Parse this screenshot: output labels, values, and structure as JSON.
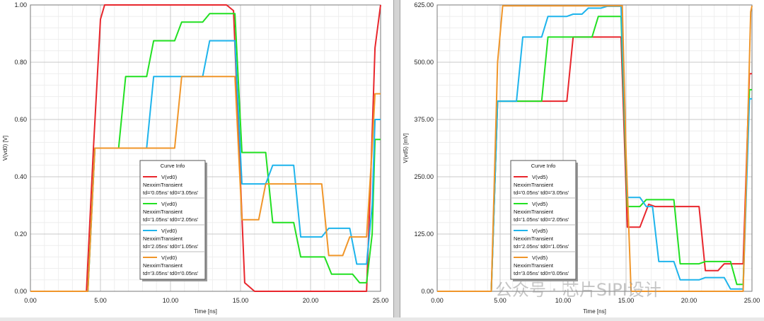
{
  "chart_data": [
    {
      "type": "line",
      "title": "",
      "xlabel": "Time [ns]",
      "ylabel": "V(vd0) [V]",
      "xlim": [
        0,
        25
      ],
      "ylim": [
        0,
        1
      ],
      "xticks": [
        "0.00",
        "5.00",
        "10.00",
        "15.00",
        "20.00",
        "25.00"
      ],
      "yticks": [
        "0.00",
        "0.20",
        "0.40",
        "0.60",
        "0.80",
        "1.00"
      ],
      "grid": true,
      "legend_title": "Curve Info",
      "legend_position": "lower-center",
      "series": [
        {
          "name": "V(vd0)",
          "sub": "NexximTransient",
          "params": "td='0.05ns' td0='3.05ns'",
          "color": "#e8262c",
          "x": [
            0,
            4.0,
            4.5,
            5.0,
            5.3,
            14.0,
            14.5,
            14.9,
            15.3,
            16.0,
            24.0,
            24.3,
            24.6,
            25.0
          ],
          "y": [
            0,
            0.0,
            0.5,
            0.95,
            1.0,
            1.0,
            0.98,
            0.5,
            0.03,
            0.0,
            0.0,
            0.4,
            0.85,
            1.0
          ]
        },
        {
          "name": "V(vd0)",
          "sub": "NexximTransient",
          "params": "td='1.05ns' td0='2.05ns'",
          "color": "#22e022",
          "x": [
            0,
            4.1,
            4.6,
            6.3,
            6.8,
            8.3,
            8.8,
            10.3,
            10.8,
            12.3,
            12.8,
            14.6,
            15.1,
            16.8,
            17.3,
            18.8,
            19.3,
            21.0,
            21.5,
            23.0,
            23.5,
            24.0,
            24.4,
            24.6,
            24.9,
            25.0
          ],
          "y": [
            0,
            0.0,
            0.5,
            0.5,
            0.75,
            0.75,
            0.875,
            0.875,
            0.94,
            0.94,
            0.97,
            0.97,
            0.485,
            0.485,
            0.24,
            0.24,
            0.12,
            0.12,
            0.06,
            0.06,
            0.03,
            0.03,
            0.2,
            0.53,
            0.53,
            0.53
          ]
        },
        {
          "name": "V(vd0)",
          "sub": "NexximTransient",
          "params": "td='2.05ns' td0='1.05ns'",
          "color": "#1eb4ec",
          "x": [
            0,
            4.1,
            4.6,
            8.3,
            8.8,
            12.3,
            12.8,
            14.6,
            15.1,
            16.8,
            17.3,
            18.8,
            19.3,
            20.8,
            21.3,
            22.8,
            23.3,
            24.0,
            24.4,
            24.6,
            24.9,
            25.0
          ],
          "y": [
            0,
            0.0,
            0.5,
            0.5,
            0.75,
            0.75,
            0.875,
            0.875,
            0.375,
            0.375,
            0.44,
            0.44,
            0.19,
            0.19,
            0.22,
            0.22,
            0.095,
            0.095,
            0.3,
            0.6,
            0.6,
            0.6
          ]
        },
        {
          "name": "V(vd0)",
          "sub": "NexximTransient",
          "params": "td='3.05ns' td0='0.05ns'",
          "color": "#f0962a",
          "x": [
            0,
            4.1,
            4.6,
            10.3,
            10.8,
            14.6,
            15.1,
            16.3,
            16.8,
            20.8,
            21.3,
            22.3,
            22.8,
            24.0,
            24.4,
            24.6,
            24.9,
            25.0
          ],
          "y": [
            0,
            0.0,
            0.5,
            0.5,
            0.75,
            0.75,
            0.25,
            0.25,
            0.375,
            0.375,
            0.125,
            0.125,
            0.19,
            0.19,
            0.5,
            0.69,
            0.69,
            0.69
          ]
        }
      ]
    },
    {
      "type": "line",
      "title": "",
      "xlabel": "Time [ns]",
      "ylabel": "V(vd5) [mV]",
      "xlim": [
        0,
        25
      ],
      "ylim": [
        0,
        625
      ],
      "xticks": [
        "0.00",
        "5.00",
        "10.00",
        "15.00",
        "20.00",
        "25.00"
      ],
      "yticks": [
        "0.00",
        "125.00",
        "250.00",
        "375.00",
        "500.00",
        "625.00"
      ],
      "grid": true,
      "legend_title": "Curve Info",
      "legend_position": "lower-center",
      "series": [
        {
          "name": "V(vd5)",
          "sub": "NexximTransient",
          "params": "td='0.05ns' td0='3.05ns'",
          "color": "#e8262c",
          "x": [
            0,
            4.3,
            4.8,
            10.3,
            10.8,
            14.6,
            15.1,
            15.6,
            16.1,
            16.8,
            17.3,
            20.8,
            21.3,
            22.3,
            22.8,
            24.3,
            24.8,
            25.0
          ],
          "y": [
            0,
            0,
            415,
            415,
            555,
            555,
            140,
            140,
            140,
            190,
            185,
            185,
            45,
            45,
            60,
            60,
            475,
            475
          ]
        },
        {
          "name": "V(vd5)",
          "sub": "NexximTransient",
          "params": "td='1.05ns' td0='2.05ns'",
          "color": "#22e022",
          "x": [
            0,
            4.3,
            4.8,
            8.3,
            8.8,
            12.3,
            12.8,
            14.6,
            15.1,
            16.1,
            16.6,
            18.8,
            19.3,
            20.8,
            21.3,
            23.3,
            23.8,
            24.3,
            24.8,
            25.0
          ],
          "y": [
            0,
            0,
            415,
            415,
            555,
            555,
            600,
            600,
            185,
            185,
            200,
            200,
            60,
            60,
            65,
            65,
            15,
            15,
            440,
            440
          ]
        },
        {
          "name": "V(vd5)",
          "sub": "NexximTransient",
          "params": "td='2.05ns' td0='1.05ns'",
          "color": "#1eb4ec",
          "x": [
            0,
            4.3,
            4.8,
            6.3,
            6.8,
            8.3,
            8.8,
            10.3,
            10.8,
            11.5,
            12.0,
            13.0,
            13.5,
            14.6,
            15.1,
            16.1,
            16.6,
            17.1,
            17.6,
            18.8,
            19.3,
            20.8,
            21.3,
            22.8,
            23.3,
            24.3,
            24.8,
            25.0
          ],
          "y": [
            0,
            0,
            415,
            415,
            555,
            555,
            600,
            600,
            605,
            605,
            618,
            618,
            622,
            622,
            205,
            205,
            185,
            185,
            65,
            65,
            25,
            25,
            30,
            30,
            5,
            5,
            420,
            420
          ]
        },
        {
          "name": "V(vd5)",
          "sub": "NexximTransient",
          "params": "td='3.05ns' td0='0.05ns'",
          "color": "#f0962a",
          "x": [
            0,
            4.3,
            4.8,
            5.2,
            14.7,
            15.0,
            15.4,
            24.3,
            24.6,
            24.9,
            25.0
          ],
          "y": [
            0,
            0,
            500,
            623,
            623,
            300,
            0,
            0,
            300,
            610,
            623
          ]
        }
      ]
    }
  ],
  "watermark": "公众号 · 芯片SIPI设计"
}
